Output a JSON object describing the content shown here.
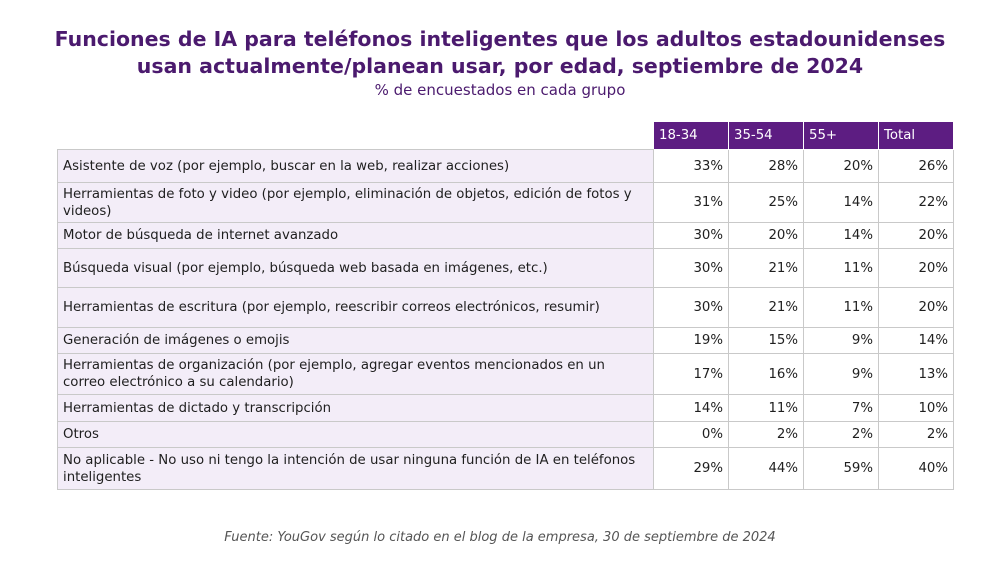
{
  "header": {
    "title": "Funciones de IA para teléfonos inteligentes que los adultos estadounidenses usan actualmente/planean usar, por edad, septiembre de 2024",
    "subtitle": "% de encuestados en cada grupo"
  },
  "footer": {
    "source": "Fuente: YouGov según lo citado en el blog de la empresa, 30 de septiembre de 2024"
  },
  "colors": {
    "title": "#4b1a6e",
    "header_bg": "#5d1d82",
    "label_bg": "#f3edf8",
    "border": "#c9c9c9"
  },
  "chart_data": {
    "type": "table",
    "title": "Funciones de IA para teléfonos inteligentes que los adultos estadounidenses usan actualmente/planean usar, por edad, septiembre de 2024",
    "subtitle": "% de encuestados en cada grupo",
    "columns": [
      "18-34",
      "35-54",
      "55+",
      "Total"
    ],
    "rows": [
      {
        "label": "Asistente de voz (por ejemplo, buscar en la web, realizar acciones)",
        "values": [
          "33%",
          "28%",
          "20%",
          "26%"
        ]
      },
      {
        "label": "Herramientas de foto y video (por ejemplo, eliminación de objetos, edición de fotos y videos)",
        "values": [
          "31%",
          "25%",
          "14%",
          "22%"
        ]
      },
      {
        "label": "Motor de búsqueda de internet avanzado",
        "values": [
          "30%",
          "20%",
          "14%",
          "20%"
        ]
      },
      {
        "label": "Búsqueda visual (por ejemplo, búsqueda web basada en imágenes, etc.)",
        "values": [
          "30%",
          "21%",
          "11%",
          "20%"
        ]
      },
      {
        "label": "Herramientas de escritura (por ejemplo, reescribir correos electrónicos, resumir)",
        "values": [
          "30%",
          "21%",
          "11%",
          "20%"
        ]
      },
      {
        "label": "Generación de imágenes o emojis",
        "values": [
          "19%",
          "15%",
          "9%",
          "14%"
        ]
      },
      {
        "label": "Herramientas de organización (por ejemplo, agregar eventos mencionados en un correo electrónico a su calendario)",
        "values": [
          "17%",
          "16%",
          "9%",
          "13%"
        ]
      },
      {
        "label": "Herramientas de dictado y transcripción",
        "values": [
          "14%",
          "11%",
          "7%",
          "10%"
        ]
      },
      {
        "label": "Otros",
        "values": [
          "0%",
          "2%",
          "2%",
          "2%"
        ]
      },
      {
        "label": "No aplicable - No uso ni tengo la intención de usar ninguna función de IA en teléfonos inteligentes",
        "values": [
          "29%",
          "44%",
          "59%",
          "40%"
        ]
      }
    ]
  }
}
